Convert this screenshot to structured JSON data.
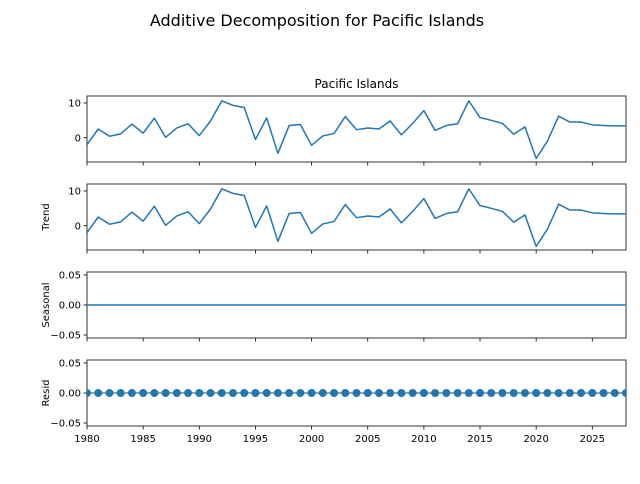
{
  "figure": {
    "suptitle": "Additive Decomposition for Pacific Islands"
  },
  "chart_data": {
    "type": "line",
    "title": "Additive Decomposition for Pacific Islands",
    "line_color": "#1f77b4",
    "x": [
      1980,
      1981,
      1982,
      1983,
      1984,
      1985,
      1986,
      1987,
      1988,
      1989,
      1990,
      1991,
      1992,
      1993,
      1994,
      1995,
      1996,
      1997,
      1998,
      1999,
      2000,
      2001,
      2002,
      2003,
      2004,
      2005,
      2006,
      2007,
      2008,
      2009,
      2010,
      2011,
      2012,
      2013,
      2014,
      2015,
      2016,
      2017,
      2018,
      2019,
      2020,
      2021,
      2022,
      2023,
      2024,
      2025,
      2026,
      2027,
      2028
    ],
    "xlim": [
      1980,
      2028
    ],
    "xticks": [
      "1980",
      "1985",
      "1990",
      "1995",
      "2000",
      "2005",
      "2010",
      "2015",
      "2020",
      "2025"
    ],
    "panels": [
      {
        "name": "observed",
        "title": "Pacific Islands",
        "ylabel": "",
        "kind": "line",
        "ylim": [
          -7,
          12
        ],
        "yticks": [
          "10",
          "0"
        ],
        "ytick_values": [
          10,
          0
        ],
        "values": [
          -2.0,
          2.5,
          0.4,
          1.1,
          3.9,
          1.3,
          5.6,
          0.1,
          2.8,
          4.0,
          0.6,
          4.8,
          10.6,
          9.3,
          8.7,
          -0.5,
          5.7,
          -4.5,
          3.5,
          3.8,
          -2.2,
          0.5,
          1.2,
          6.1,
          2.3,
          2.8,
          2.5,
          4.8,
          0.8,
          4.1,
          7.8,
          2.1,
          3.5,
          4.0,
          10.6,
          5.8,
          5.0,
          4.1,
          1.0,
          3.1,
          -6.0,
          -1.0,
          6.2,
          4.5,
          4.5,
          3.7,
          3.5,
          3.4,
          3.4
        ]
      },
      {
        "name": "trend",
        "title": "",
        "ylabel": "Trend",
        "kind": "line",
        "ylim": [
          -7,
          12
        ],
        "yticks": [
          "10",
          "0"
        ],
        "ytick_values": [
          10,
          0
        ],
        "values": [
          -2.0,
          2.5,
          0.4,
          1.1,
          3.9,
          1.3,
          5.6,
          0.1,
          2.8,
          4.0,
          0.6,
          4.8,
          10.6,
          9.3,
          8.7,
          -0.5,
          5.7,
          -4.5,
          3.5,
          3.8,
          -2.2,
          0.5,
          1.2,
          6.1,
          2.3,
          2.8,
          2.5,
          4.8,
          0.8,
          4.1,
          7.8,
          2.1,
          3.5,
          4.0,
          10.6,
          5.8,
          5.0,
          4.1,
          1.0,
          3.1,
          -6.0,
          -1.0,
          6.2,
          4.5,
          4.5,
          3.7,
          3.5,
          3.4,
          3.4
        ]
      },
      {
        "name": "seasonal",
        "title": "",
        "ylabel": "Seasonal",
        "kind": "line",
        "ylim": [
          -0.055,
          0.055
        ],
        "yticks": [
          "0.05",
          "0.00",
          "−0.05"
        ],
        "ytick_values": [
          0.05,
          0.0,
          -0.05
        ],
        "values": [
          0,
          0,
          0,
          0,
          0,
          0,
          0,
          0,
          0,
          0,
          0,
          0,
          0,
          0,
          0,
          0,
          0,
          0,
          0,
          0,
          0,
          0,
          0,
          0,
          0,
          0,
          0,
          0,
          0,
          0,
          0,
          0,
          0,
          0,
          0,
          0,
          0,
          0,
          0,
          0,
          0,
          0,
          0,
          0,
          0,
          0,
          0,
          0,
          0
        ]
      },
      {
        "name": "resid",
        "title": "",
        "ylabel": "Resid",
        "kind": "scatter",
        "ylim": [
          -0.055,
          0.055
        ],
        "yticks": [
          "0.05",
          "0.00",
          "−0.05"
        ],
        "ytick_values": [
          0.05,
          0.0,
          -0.05
        ],
        "values": [
          0,
          0,
          0,
          0,
          0,
          0,
          0,
          0,
          0,
          0,
          0,
          0,
          0,
          0,
          0,
          0,
          0,
          0,
          0,
          0,
          0,
          0,
          0,
          0,
          0,
          0,
          0,
          0,
          0,
          0,
          0,
          0,
          0,
          0,
          0,
          0,
          0,
          0,
          0,
          0,
          0,
          0,
          0,
          0,
          0,
          0,
          0,
          0,
          0
        ]
      }
    ]
  }
}
